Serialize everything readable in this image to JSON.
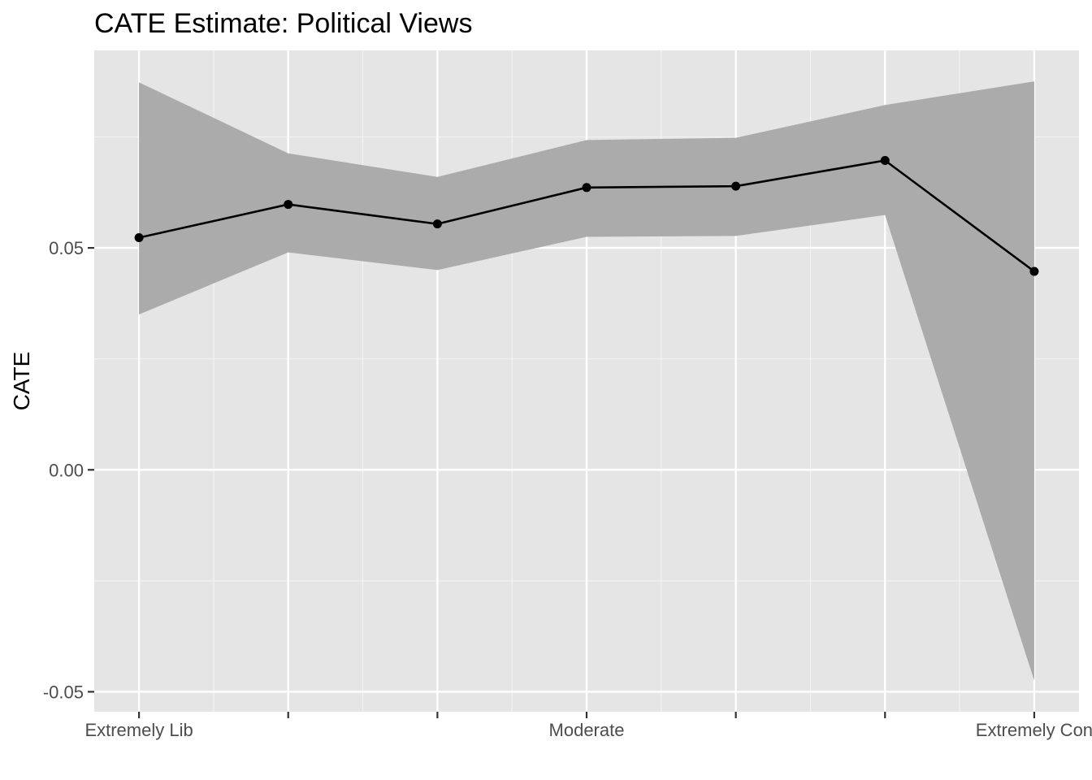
{
  "chart_data": {
    "type": "line",
    "title": "CATE Estimate: Political Views",
    "xlabel": "",
    "ylabel": "CATE",
    "x": [
      1,
      2,
      3,
      4,
      5,
      6,
      7
    ],
    "x_tick_values": [
      1,
      2,
      3,
      4,
      5,
      6,
      7
    ],
    "x_tick_labels": [
      "Extremely Lib",
      "",
      "",
      "Moderate",
      "",
      "",
      "Extremely Con"
    ],
    "y_tick_values": [
      -0.05,
      0.0,
      0.05
    ],
    "y_tick_labels": [
      "-0.05",
      "0.00",
      "0.05"
    ],
    "xlim": [
      0.7,
      7.3
    ],
    "ylim": [
      -0.0545,
      0.0945
    ],
    "grid": true,
    "legend": "none",
    "series": [
      {
        "values": [
          0.0523,
          0.0598,
          0.0554,
          0.0636,
          0.0639,
          0.0697,
          0.0447
        ],
        "lower": [
          0.035,
          0.049,
          0.045,
          0.0525,
          0.0527,
          0.0574,
          -0.0475
        ],
        "upper": [
          0.0873,
          0.0713,
          0.066,
          0.0743,
          0.0748,
          0.0822,
          0.0875
        ]
      }
    ],
    "colors": {
      "panel_background": "#e5e5e5",
      "grid_major": "#ffffff",
      "grid_minor": "#f2f2f2",
      "ribbon": "#ababab",
      "line": "#000000",
      "point": "#000000",
      "tick_mark": "#333333",
      "tick_label": "#4d4d4d",
      "text": "#000000"
    }
  }
}
